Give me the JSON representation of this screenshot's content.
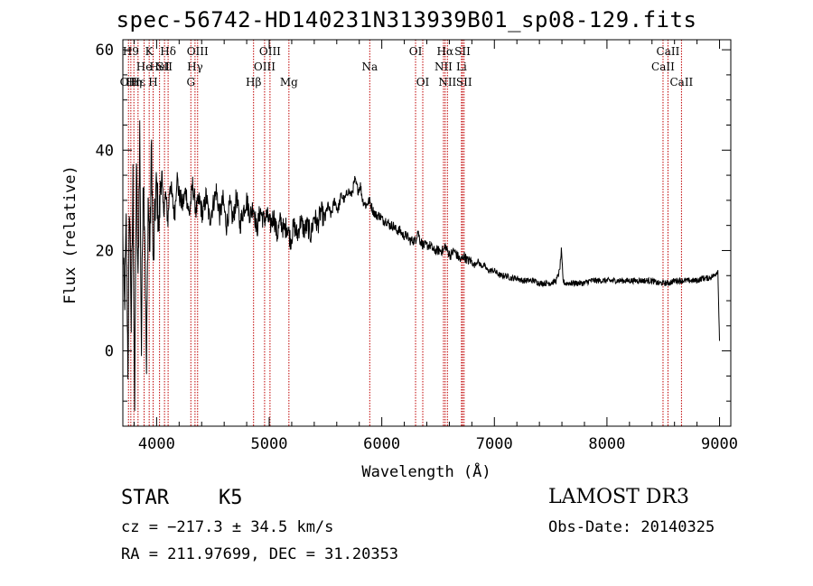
{
  "chart_data": {
    "type": "line",
    "title": "spec-56742-HD140231N313939B01_sp08-129.fits",
    "xlabel": "Wavelength (Å)",
    "ylabel": "Flux (relative)",
    "xlim": [
      3700,
      9100
    ],
    "ylim": [
      -15,
      62
    ],
    "xticks": [
      4000,
      5000,
      6000,
      7000,
      8000,
      9000
    ],
    "xtick_labels": [
      "4000",
      "5000",
      "6000",
      "7000",
      "8000",
      "9000"
    ],
    "yticks": [
      0,
      20,
      40,
      60
    ],
    "ytick_labels": [
      "0",
      "20",
      "40",
      "60"
    ],
    "grid": false,
    "series": [
      {
        "name": "spectrum",
        "x": [
          3700,
          3715,
          3730,
          3745,
          3760,
          3775,
          3790,
          3805,
          3820,
          3835,
          3850,
          3865,
          3880,
          3895,
          3910,
          3925,
          3940,
          3955,
          3970,
          3985,
          4000,
          4020,
          4040,
          4060,
          4080,
          4100,
          4120,
          4140,
          4160,
          4180,
          4200,
          4230,
          4260,
          4290,
          4320,
          4350,
          4380,
          4410,
          4440,
          4470,
          4500,
          4530,
          4560,
          4590,
          4620,
          4650,
          4680,
          4710,
          4740,
          4770,
          4800,
          4830,
          4860,
          4890,
          4920,
          4950,
          4980,
          5010,
          5040,
          5070,
          5100,
          5130,
          5160,
          5190,
          5220,
          5250,
          5280,
          5310,
          5340,
          5370,
          5400,
          5430,
          5460,
          5490,
          5520,
          5550,
          5580,
          5610,
          5640,
          5670,
          5700,
          5730,
          5760,
          5790,
          5810,
          5830,
          5860,
          5890,
          5920,
          5950,
          5980,
          6010,
          6040,
          6070,
          6100,
          6130,
          6160,
          6190,
          6220,
          6250,
          6280,
          6300,
          6320,
          6340,
          6370,
          6400,
          6430,
          6460,
          6490,
          6520,
          6550,
          6563,
          6580,
          6610,
          6640,
          6670,
          6700,
          6730,
          6760,
          6790,
          6820,
          6850,
          6880,
          6910,
          6940,
          6970,
          7000,
          7050,
          7100,
          7150,
          7200,
          7250,
          7300,
          7350,
          7400,
          7450,
          7500,
          7550,
          7580,
          7595,
          7610,
          7625,
          7650,
          7700,
          7750,
          7800,
          7850,
          7900,
          7950,
          8000,
          8050,
          8100,
          8150,
          8200,
          8250,
          8300,
          8350,
          8400,
          8450,
          8500,
          8550,
          8600,
          8650,
          8700,
          8750,
          8800,
          8850,
          8900,
          8950,
          8985,
          9000
        ],
        "y": [
          22,
          8,
          25,
          -3,
          30,
          5,
          34,
          -12,
          38,
          12,
          44,
          0,
          35,
          25,
          -5,
          30,
          20,
          41,
          15,
          28,
          33,
          24,
          36,
          28,
          31,
          26,
          34,
          30,
          27,
          35,
          31,
          29,
          32,
          27,
          33,
          28,
          30,
          27,
          31,
          26,
          29,
          32,
          27,
          30,
          25,
          29,
          26,
          31,
          25,
          28,
          30,
          27,
          29,
          24,
          28,
          26,
          27,
          25,
          27,
          23,
          26,
          24,
          25,
          22,
          25,
          23,
          26,
          24,
          25,
          23,
          27,
          25,
          28,
          26,
          29,
          27,
          30,
          28,
          31,
          30,
          32,
          31,
          34,
          32,
          33,
          30,
          29,
          30,
          28,
          27,
          27,
          26,
          26,
          25,
          25,
          24,
          24,
          23,
          23,
          22,
          22,
          22,
          24,
          22,
          21,
          21,
          21,
          20,
          20,
          20,
          20,
          21,
          20,
          19,
          20,
          19,
          18,
          19,
          18,
          18,
          17,
          18,
          17,
          17,
          16,
          16,
          16,
          15,
          15,
          14.5,
          14.5,
          14,
          14,
          14,
          13.5,
          13.5,
          13.5,
          14,
          16,
          20,
          14,
          13.5,
          13.5,
          13.5,
          13.5,
          13.5,
          14,
          14,
          14,
          14,
          14,
          14,
          14,
          14,
          14,
          14,
          14,
          14,
          13.5,
          13.5,
          13.5,
          14,
          14,
          14,
          14,
          14,
          14.5,
          14.5,
          15,
          16,
          2
        ]
      }
    ],
    "line_markers": [
      {
        "x": 3750,
        "label": "OII",
        "row": 3
      },
      {
        "x": 3771,
        "label": "H9",
        "row": 1
      },
      {
        "x": 3798,
        "label": "Hη",
        "row": 3
      },
      {
        "x": 3835,
        "label": "Hε",
        "row": 3
      },
      {
        "x": 3889,
        "label": "He",
        "row": 2
      },
      {
        "x": 3934,
        "label": "K",
        "row": 1
      },
      {
        "x": 3969,
        "label": "H",
        "row": 3
      },
      {
        "x": 4026,
        "label": "HeI",
        "row": 2
      },
      {
        "x": 4070,
        "label": "SII",
        "row": 2
      },
      {
        "x": 4102,
        "label": "Hδ",
        "row": 1
      },
      {
        "x": 4304,
        "label": "G",
        "row": 3
      },
      {
        "x": 4341,
        "label": "Hγ",
        "row": 2
      },
      {
        "x": 4364,
        "label": "OIII",
        "row": 1
      },
      {
        "x": 4861,
        "label": "Hβ",
        "row": 3
      },
      {
        "x": 4959,
        "label": "OIII",
        "row": 2
      },
      {
        "x": 5007,
        "label": "OIII",
        "row": 1
      },
      {
        "x": 5175,
        "label": "Mg",
        "row": 3
      },
      {
        "x": 5893,
        "label": "Na",
        "row": 2
      },
      {
        "x": 6300,
        "label": "OI",
        "row": 1
      },
      {
        "x": 6364,
        "label": "OI",
        "row": 3
      },
      {
        "x": 6548,
        "label": "NII",
        "row": 2
      },
      {
        "x": 6563,
        "label": "Hα",
        "row": 1
      },
      {
        "x": 6583,
        "label": "NII",
        "row": 3
      },
      {
        "x": 6708,
        "label": "Li",
        "row": 2
      },
      {
        "x": 6717,
        "label": "SII",
        "row": 1
      },
      {
        "x": 6731,
        "label": "SII",
        "row": 3
      },
      {
        "x": 8498,
        "label": "CaII",
        "row": 2
      },
      {
        "x": 8542,
        "label": "CaII",
        "row": 1
      },
      {
        "x": 8662,
        "label": "CaII",
        "row": 3
      }
    ]
  },
  "info": {
    "class": "STAR",
    "subclass": "K5",
    "survey": "LAMOST DR3",
    "cz": "cz = −217.3 ± 34.5 km/s",
    "obs_date": "Obs-Date: 20140325",
    "coords": "RA = 211.97699, DEC =  31.20353"
  },
  "colors": {
    "spectrum": "#000000",
    "marker": "#c00000",
    "axis": "#000000"
  }
}
